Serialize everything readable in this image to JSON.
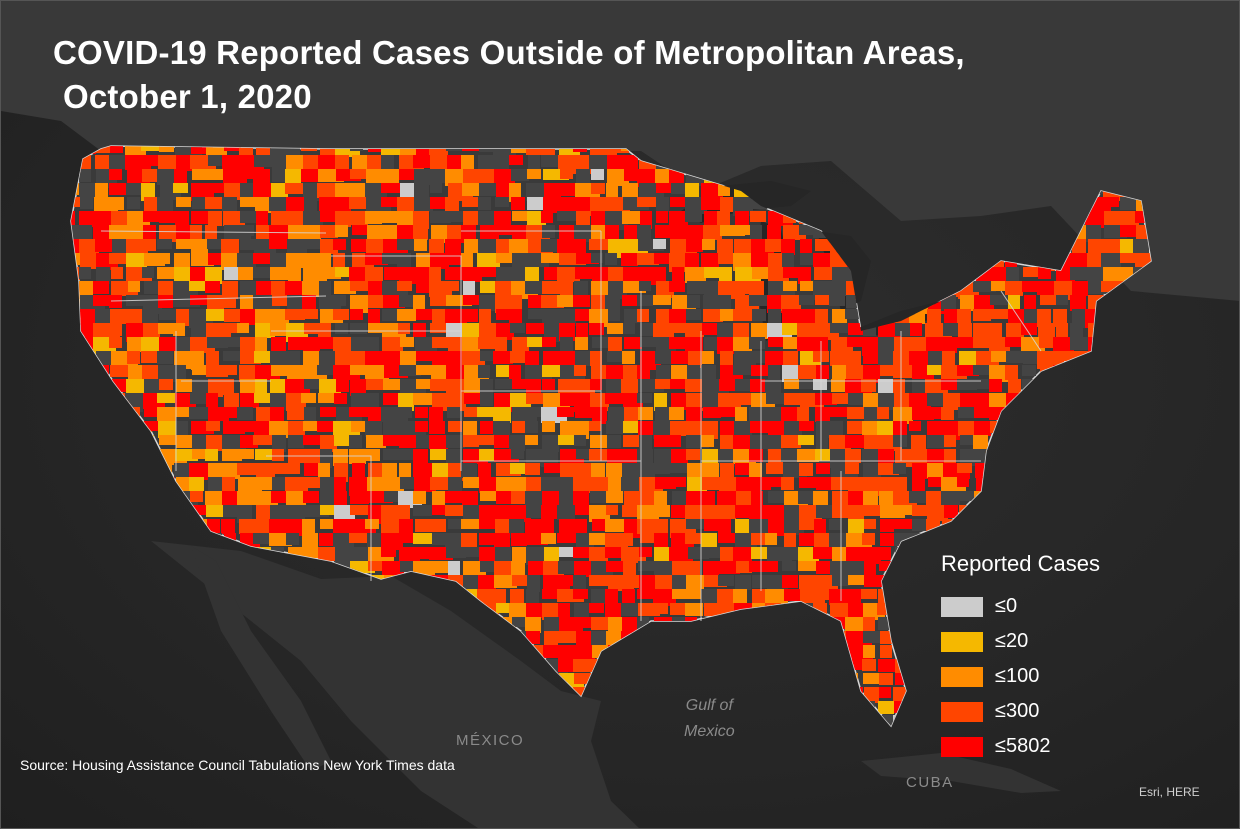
{
  "map": {
    "title_line1": "COVID-19 Reported Cases Outside of Metropolitan Areas,",
    "title_line2": "October 1, 2020",
    "source": "Source: Housing Assistance Council Tabulations New York Times data",
    "attribution": "Esri, HERE",
    "basemap": {
      "water_color": "#262626",
      "land_color": "#3a3a3a",
      "metro_color": "#444444",
      "border_color": "#d8d8d8",
      "labels": {
        "country": "MÉXICO",
        "island": "CUBA",
        "sea_line1": "Gulf of",
        "sea_line2": "Mexico"
      }
    },
    "legend": {
      "title": "Reported Cases",
      "classes": [
        {
          "label": "≤0",
          "max": 0,
          "color": "#cccccc"
        },
        {
          "label": "≤20",
          "max": 20,
          "color": "#f5b800"
        },
        {
          "label": "≤100",
          "max": 100,
          "color": "#ff8c00"
        },
        {
          "label": "≤300",
          "max": 300,
          "color": "#ff4500"
        },
        {
          "label": "≤5802",
          "max": 5802,
          "color": "#ff0000"
        }
      ]
    }
  }
}
